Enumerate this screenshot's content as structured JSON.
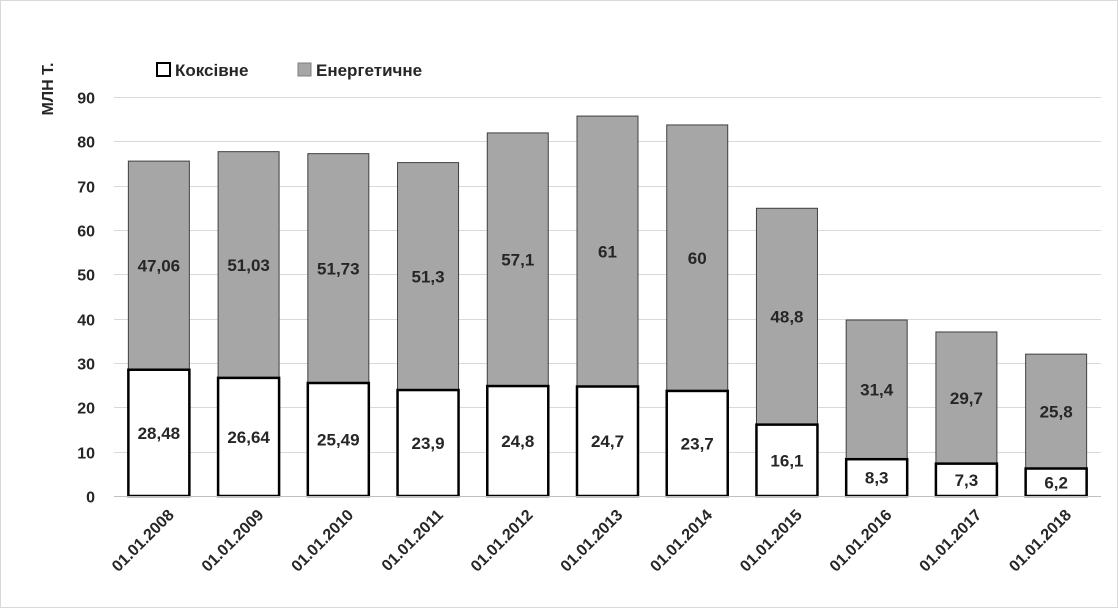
{
  "chart_data": {
    "type": "bar",
    "stacked": true,
    "unit": "МЛН Т.",
    "legend": {
      "placement": "top-left",
      "entries": [
        "Коксівне",
        "Енергетичне"
      ]
    },
    "categories": [
      "01.01.2008",
      "01.01.2009",
      "01.01.2010",
      "01.01.2011",
      "01.01.2012",
      "01.01.2013",
      "01.01.2014",
      "01.01.2015",
      "01.01.2016",
      "01.01.2017",
      "01.01.2018"
    ],
    "series": [
      {
        "name": "Коксівне",
        "color": "#ffffff",
        "values": [
          28.48,
          26.64,
          25.49,
          23.9,
          24.8,
          24.7,
          23.7,
          16.1,
          8.3,
          7.3,
          6.2
        ],
        "labels": [
          "28,48",
          "26,64",
          "25,49",
          "23,9",
          "24,8",
          "24,7",
          "23,7",
          "16,1",
          "8,3",
          "7,3",
          "6,2"
        ]
      },
      {
        "name": "Енергетичне",
        "color": "#a6a6a6",
        "values": [
          47.06,
          51.03,
          51.73,
          51.3,
          57.1,
          61,
          60,
          48.8,
          31.4,
          29.7,
          25.8
        ],
        "labels": [
          "47,06",
          "51,03",
          "51,73",
          "51,3",
          "57,1",
          "61",
          "60",
          "48,8",
          "31,4",
          "29,7",
          "25,8"
        ]
      }
    ],
    "ylim": [
      0,
      90
    ],
    "yticks": [
      0,
      10,
      20,
      30,
      40,
      50,
      60,
      70,
      80,
      90
    ],
    "grid": true,
    "xlabel_rotation": -45
  }
}
